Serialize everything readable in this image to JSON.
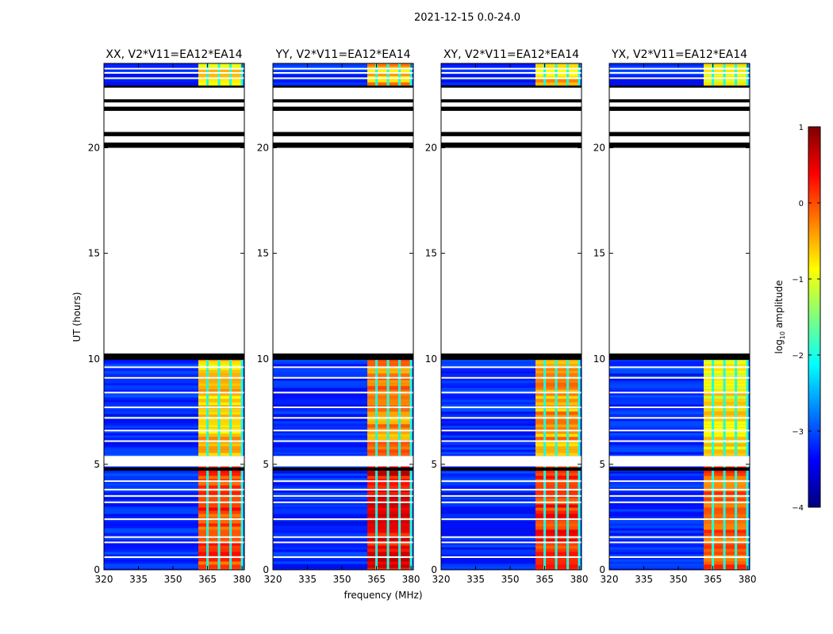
{
  "chart_data": {
    "type": "heatmap",
    "title": "2021-12-15 0.0-24.0",
    "xlabel": "frequency (MHz)",
    "ylabel": "UT (hours)",
    "xlim": [
      320,
      381
    ],
    "ylim": [
      0,
      24
    ],
    "xticks": [
      320,
      335,
      350,
      365,
      380
    ],
    "yticks": [
      0,
      5,
      10,
      15,
      20
    ],
    "panels": [
      {
        "name": "XX",
        "title": "XX, V2*V11=EA12*EA14"
      },
      {
        "name": "YY",
        "title": "YY, V2*V11=EA12*EA14"
      },
      {
        "name": "XY",
        "title": "XY, V2*V11=EA12*EA14"
      },
      {
        "name": "YX",
        "title": "YX, V2*V11=EA12*EA14"
      }
    ],
    "colorbar": {
      "label": "log10 amplitude",
      "label_base": "log",
      "label_sub": "10",
      "label_rest": " amplitude",
      "range": [
        -4,
        1
      ],
      "ticks": [
        1,
        0,
        -1,
        -2,
        -3,
        -4
      ],
      "tick_labels": [
        "1",
        "0",
        "−1",
        "−2",
        "−3",
        "−4"
      ],
      "colors": [
        "#00007f",
        "#0000ff",
        "#007fff",
        "#00ffff",
        "#7fff7f",
        "#ffff00",
        "#ff7f00",
        "#ff0000",
        "#7f0000"
      ]
    },
    "data_hours": [
      [
        0,
        4.9
      ],
      [
        5.4,
        10.2
      ],
      [
        22.9,
        24
      ]
    ],
    "blank_hours": [
      [
        4.9,
        5.4
      ],
      [
        10.2,
        22.9
      ]
    ],
    "black_bands": [
      [
        4.7,
        4.85
      ],
      [
        9.95,
        10.25
      ],
      [
        20.0,
        20.25
      ],
      [
        20.55,
        20.75
      ],
      [
        21.75,
        21.95
      ],
      [
        22.15,
        22.3
      ],
      [
        22.85,
        22.95
      ]
    ],
    "white_lines": [
      0.6,
      1.3,
      1.55,
      2.4,
      3.2,
      3.5,
      3.8,
      4.2,
      6.1,
      6.6,
      7.2,
      7.7,
      8.4,
      9.1,
      9.6,
      23.3,
      23.55,
      23.75
    ],
    "hot_band_mhz": [
      361,
      380
    ],
    "hot_columns_mhz": [
      365,
      370,
      375,
      380
    ],
    "hot_level_log10": {
      "XX": [
        -0.7,
        -0.6,
        0.1
      ],
      "YY": [
        -0.5,
        -0.3,
        0.4
      ],
      "XY": [
        -0.6,
        -0.4,
        0.2
      ],
      "YX": [
        -0.9,
        -0.8,
        -0.1
      ]
    },
    "background_level_log10": -3.2
  }
}
